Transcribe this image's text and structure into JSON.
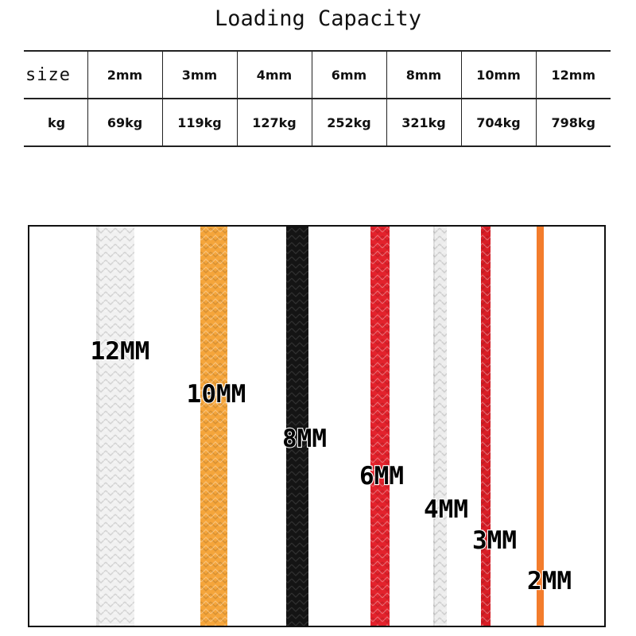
{
  "title": "Loading Capacity",
  "table": {
    "size_header": "size",
    "kg_header": "kg",
    "sizes": [
      "2mm",
      "3mm",
      "4mm",
      "6mm",
      "8mm",
      "10mm",
      "12mm"
    ],
    "capacities": [
      "69kg",
      "119kg",
      "127kg",
      "252kg",
      "321kg",
      "704kg",
      "798kg"
    ]
  },
  "ropes": [
    {
      "label": "12MM",
      "color": "#f2f2f2"
    },
    {
      "label": "10MM",
      "color": "#f5a53b"
    },
    {
      "label": "8MM",
      "color": "#151515"
    },
    {
      "label": "6MM",
      "color": "#e3222c"
    },
    {
      "label": "4MM",
      "color": "#ededed"
    },
    {
      "label": "3MM",
      "color": "#d81e26"
    },
    {
      "label": "2MM",
      "color": "#f37c2c"
    }
  ]
}
